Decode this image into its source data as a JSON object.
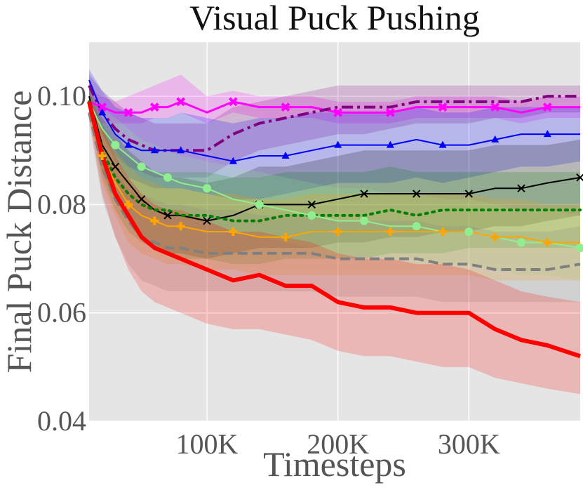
{
  "chart_data": {
    "type": "line",
    "title": "Visual Puck Pushing",
    "xlabel": "Timesteps",
    "ylabel": "Final Puck Distance",
    "xlim": [
      10000,
      385000
    ],
    "ylim": [
      0.04,
      0.11
    ],
    "x_ticks": [
      {
        "value": 100000,
        "label": "100K"
      },
      {
        "value": 200000,
        "label": "200K"
      },
      {
        "value": 300000,
        "label": "300K"
      }
    ],
    "y_ticks": [
      {
        "value": 0.04,
        "label": "0.04"
      },
      {
        "value": 0.06,
        "label": "0.06"
      },
      {
        "value": 0.08,
        "label": "0.08"
      },
      {
        "value": 0.1,
        "label": "0.10"
      }
    ],
    "grid": true,
    "background": "#e5e5e5",
    "x": [
      10000,
      20000,
      30000,
      40000,
      50000,
      60000,
      70000,
      80000,
      100000,
      120000,
      140000,
      160000,
      180000,
      200000,
      220000,
      240000,
      260000,
      280000,
      300000,
      320000,
      340000,
      360000,
      385000
    ],
    "series": [
      {
        "name": "magenta",
        "color": "#ff00ff",
        "marker": "x-thick",
        "dash": "solid",
        "width": 3,
        "values": [
          0.099,
          0.098,
          0.097,
          0.097,
          0.097,
          0.098,
          0.098,
          0.099,
          0.097,
          0.099,
          0.098,
          0.098,
          0.098,
          0.097,
          0.097,
          0.097,
          0.098,
          0.098,
          0.098,
          0.098,
          0.097,
          0.098,
          0.098
        ],
        "lower": [
          0.096,
          0.095,
          0.095,
          0.095,
          0.095,
          0.096,
          0.096,
          0.097,
          0.095,
          0.097,
          0.096,
          0.096,
          0.096,
          0.095,
          0.095,
          0.095,
          0.096,
          0.096,
          0.096,
          0.096,
          0.095,
          0.096,
          0.096
        ],
        "upper": [
          0.101,
          0.1,
          0.099,
          0.1,
          0.101,
          0.102,
          0.103,
          0.104,
          0.1,
          0.101,
          0.1,
          0.1,
          0.1,
          0.099,
          0.099,
          0.099,
          0.1,
          0.1,
          0.1,
          0.1,
          0.099,
          0.1,
          0.1
        ]
      },
      {
        "name": "purple",
        "color": "#800080",
        "marker": "none",
        "dash": "dashdot",
        "width": 4,
        "values": [
          0.102,
          0.097,
          0.094,
          0.092,
          0.091,
          0.09,
          0.09,
          0.09,
          0.09,
          0.093,
          0.095,
          0.096,
          0.097,
          0.098,
          0.098,
          0.098,
          0.099,
          0.099,
          0.099,
          0.099,
          0.099,
          0.1,
          0.1
        ],
        "lower": [
          0.1,
          0.093,
          0.089,
          0.087,
          0.086,
          0.085,
          0.085,
          0.085,
          0.085,
          0.088,
          0.09,
          0.091,
          0.092,
          0.093,
          0.093,
          0.094,
          0.095,
          0.095,
          0.095,
          0.096,
          0.096,
          0.097,
          0.097
        ],
        "upper": [
          0.104,
          0.101,
          0.099,
          0.097,
          0.096,
          0.095,
          0.095,
          0.095,
          0.095,
          0.098,
          0.099,
          0.1,
          0.101,
          0.102,
          0.102,
          0.102,
          0.102,
          0.102,
          0.102,
          0.102,
          0.102,
          0.102,
          0.102
        ]
      },
      {
        "name": "blue",
        "color": "#0000ff",
        "marker": "triangle",
        "dash": "solid",
        "width": 2,
        "values": [
          0.103,
          0.097,
          0.093,
          0.091,
          0.09,
          0.09,
          0.09,
          0.09,
          0.089,
          0.088,
          0.089,
          0.089,
          0.09,
          0.091,
          0.091,
          0.091,
          0.092,
          0.091,
          0.091,
          0.092,
          0.093,
          0.093,
          0.093
        ],
        "lower": [
          0.101,
          0.093,
          0.088,
          0.085,
          0.084,
          0.083,
          0.083,
          0.083,
          0.082,
          0.081,
          0.081,
          0.082,
          0.083,
          0.084,
          0.084,
          0.084,
          0.085,
          0.084,
          0.085,
          0.086,
          0.087,
          0.087,
          0.088
        ],
        "upper": [
          0.105,
          0.101,
          0.098,
          0.097,
          0.096,
          0.096,
          0.096,
          0.097,
          0.096,
          0.095,
          0.096,
          0.096,
          0.097,
          0.097,
          0.097,
          0.097,
          0.098,
          0.097,
          0.097,
          0.098,
          0.098,
          0.098,
          0.098
        ]
      },
      {
        "name": "black",
        "color": "#000000",
        "marker": "x",
        "dash": "solid",
        "width": 2,
        "values": [
          0.1,
          0.091,
          0.087,
          0.084,
          0.081,
          0.079,
          0.078,
          0.078,
          0.077,
          0.078,
          0.08,
          0.08,
          0.08,
          0.081,
          0.082,
          0.082,
          0.082,
          0.082,
          0.082,
          0.083,
          0.083,
          0.084,
          0.085
        ],
        "lower": [
          0.098,
          0.086,
          0.081,
          0.077,
          0.074,
          0.072,
          0.071,
          0.071,
          0.07,
          0.071,
          0.072,
          0.072,
          0.072,
          0.073,
          0.073,
          0.074,
          0.074,
          0.075,
          0.075,
          0.076,
          0.076,
          0.077,
          0.078
        ],
        "upper": [
          0.102,
          0.096,
          0.093,
          0.09,
          0.088,
          0.086,
          0.085,
          0.085,
          0.084,
          0.085,
          0.087,
          0.087,
          0.088,
          0.089,
          0.09,
          0.09,
          0.09,
          0.09,
          0.09,
          0.091,
          0.091,
          0.091,
          0.092
        ]
      },
      {
        "name": "green-dotted",
        "color": "#008000",
        "marker": "none",
        "dash": "dotted",
        "width": 4,
        "values": [
          0.099,
          0.09,
          0.085,
          0.082,
          0.08,
          0.079,
          0.079,
          0.078,
          0.078,
          0.077,
          0.077,
          0.078,
          0.078,
          0.078,
          0.078,
          0.079,
          0.078,
          0.079,
          0.079,
          0.079,
          0.079,
          0.079,
          0.079
        ],
        "lower": [
          0.097,
          0.085,
          0.079,
          0.075,
          0.073,
          0.072,
          0.071,
          0.07,
          0.07,
          0.069,
          0.069,
          0.07,
          0.07,
          0.07,
          0.07,
          0.071,
          0.071,
          0.071,
          0.072,
          0.072,
          0.072,
          0.072,
          0.072
        ],
        "upper": [
          0.101,
          0.095,
          0.091,
          0.089,
          0.087,
          0.086,
          0.086,
          0.086,
          0.086,
          0.085,
          0.085,
          0.086,
          0.086,
          0.086,
          0.086,
          0.087,
          0.086,
          0.086,
          0.086,
          0.086,
          0.086,
          0.086,
          0.086
        ]
      },
      {
        "name": "lightgreen",
        "color": "#90ee90",
        "marker": "circle",
        "dash": "solid",
        "width": 2,
        "values": [
          0.099,
          0.094,
          0.091,
          0.089,
          0.087,
          0.086,
          0.085,
          0.084,
          0.083,
          0.081,
          0.08,
          0.079,
          0.078,
          0.077,
          0.077,
          0.076,
          0.076,
          0.075,
          0.075,
          0.074,
          0.073,
          0.073,
          0.072
        ],
        "lower": [
          0.097,
          0.09,
          0.086,
          0.083,
          0.081,
          0.08,
          0.079,
          0.078,
          0.077,
          0.075,
          0.074,
          0.073,
          0.072,
          0.071,
          0.071,
          0.07,
          0.07,
          0.069,
          0.069,
          0.068,
          0.067,
          0.067,
          0.066
        ],
        "upper": [
          0.101,
          0.098,
          0.096,
          0.094,
          0.092,
          0.091,
          0.09,
          0.089,
          0.088,
          0.087,
          0.086,
          0.085,
          0.084,
          0.083,
          0.083,
          0.082,
          0.082,
          0.081,
          0.081,
          0.08,
          0.079,
          0.079,
          0.078
        ]
      },
      {
        "name": "orange",
        "color": "#ffa500",
        "marker": "plus",
        "dash": "solid",
        "width": 2,
        "values": [
          0.098,
          0.089,
          0.084,
          0.08,
          0.078,
          0.077,
          0.076,
          0.076,
          0.075,
          0.075,
          0.074,
          0.074,
          0.075,
          0.075,
          0.075,
          0.075,
          0.075,
          0.075,
          0.075,
          0.074,
          0.074,
          0.073,
          0.073
        ],
        "lower": [
          0.096,
          0.084,
          0.078,
          0.073,
          0.071,
          0.07,
          0.069,
          0.069,
          0.068,
          0.068,
          0.067,
          0.067,
          0.067,
          0.067,
          0.067,
          0.067,
          0.067,
          0.067,
          0.067,
          0.066,
          0.066,
          0.066,
          0.066
        ],
        "upper": [
          0.1,
          0.094,
          0.09,
          0.087,
          0.085,
          0.084,
          0.083,
          0.083,
          0.082,
          0.082,
          0.081,
          0.081,
          0.082,
          0.082,
          0.082,
          0.082,
          0.082,
          0.082,
          0.082,
          0.081,
          0.081,
          0.08,
          0.08
        ]
      },
      {
        "name": "gray",
        "color": "#808080",
        "marker": "none",
        "dash": "dashed",
        "width": 4,
        "values": [
          0.097,
          0.087,
          0.081,
          0.077,
          0.074,
          0.073,
          0.072,
          0.072,
          0.071,
          0.071,
          0.071,
          0.071,
          0.071,
          0.07,
          0.07,
          0.07,
          0.07,
          0.069,
          0.069,
          0.068,
          0.068,
          0.068,
          0.069
        ],
        "lower": [
          0.095,
          0.081,
          0.074,
          0.069,
          0.066,
          0.065,
          0.064,
          0.064,
          0.064,
          0.064,
          0.064,
          0.064,
          0.064,
          0.063,
          0.063,
          0.063,
          0.063,
          0.062,
          0.062,
          0.062,
          0.062,
          0.062,
          0.062
        ],
        "upper": [
          0.099,
          0.093,
          0.088,
          0.085,
          0.082,
          0.081,
          0.08,
          0.08,
          0.079,
          0.079,
          0.078,
          0.078,
          0.078,
          0.077,
          0.077,
          0.077,
          0.077,
          0.076,
          0.076,
          0.075,
          0.075,
          0.075,
          0.076
        ]
      },
      {
        "name": "red",
        "color": "#ff0000",
        "marker": "none",
        "dash": "solid",
        "width": 6,
        "values": [
          0.099,
          0.089,
          0.082,
          0.078,
          0.074,
          0.072,
          0.071,
          0.07,
          0.068,
          0.066,
          0.067,
          0.065,
          0.065,
          0.062,
          0.061,
          0.061,
          0.06,
          0.06,
          0.06,
          0.057,
          0.055,
          0.054,
          0.052
        ],
        "lower": [
          0.096,
          0.082,
          0.074,
          0.068,
          0.064,
          0.062,
          0.061,
          0.06,
          0.058,
          0.057,
          0.057,
          0.056,
          0.055,
          0.053,
          0.052,
          0.052,
          0.051,
          0.05,
          0.05,
          0.048,
          0.047,
          0.046,
          0.045
        ],
        "upper": [
          0.101,
          0.094,
          0.089,
          0.085,
          0.082,
          0.08,
          0.079,
          0.079,
          0.077,
          0.075,
          0.075,
          0.074,
          0.073,
          0.071,
          0.07,
          0.07,
          0.069,
          0.069,
          0.068,
          0.066,
          0.064,
          0.063,
          0.062
        ]
      }
    ]
  }
}
